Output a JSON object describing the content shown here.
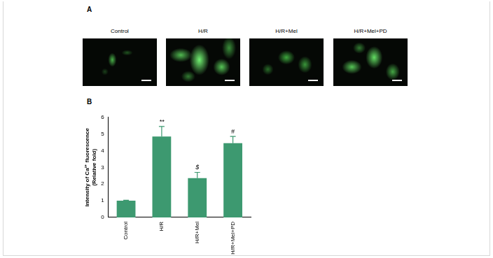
{
  "panel_a": {
    "label": "A",
    "image_titles": [
      "Control",
      "H/R",
      "H/R+Mel",
      "H/R+Mel+PD"
    ]
  },
  "chart_data": {
    "panel_label": "B",
    "type": "bar",
    "y_label": [
      "Intensity of Ca²⁺ fluorescence",
      "(Relative fold)"
    ],
    "categories": [
      "Control",
      "H/R",
      "H/R+Mel",
      "H/R+Mel+PD"
    ],
    "values": [
      1.0,
      4.85,
      2.35,
      4.45
    ],
    "errors": [
      0.03,
      0.6,
      0.35,
      0.4
    ],
    "significance": [
      null,
      "**",
      "$",
      "#"
    ],
    "color": "#3d9970",
    "ylim": [
      0,
      6
    ],
    "yticks": [
      0,
      1,
      2,
      3,
      4,
      5,
      6
    ],
    "grid": false
  }
}
